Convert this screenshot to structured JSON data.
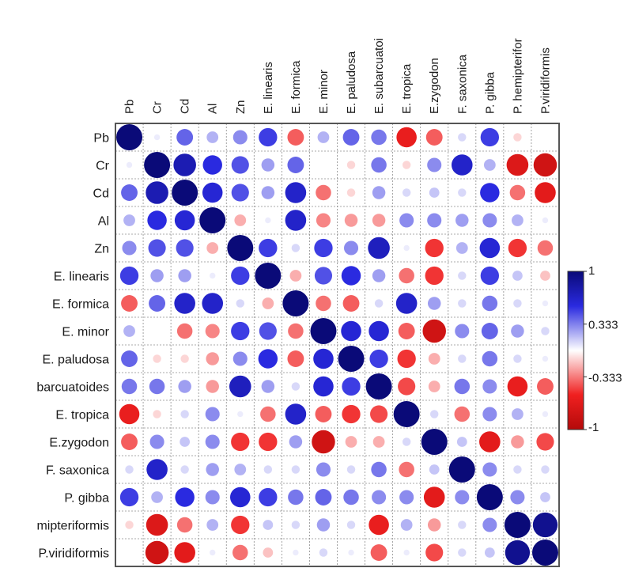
{
  "chart_data": {
    "type": "heatmap",
    "variant": "correlation-circles",
    "title": "",
    "row_labels": [
      "Pb",
      "Cr",
      "Cd",
      "Al",
      "Zn",
      "E. linearis",
      "E. formica",
      "E. minor",
      "E. paludosa",
      "barcuatoides",
      "E. tropica",
      "E.zygodon",
      "F. saxonica",
      "P. gibba",
      "mipteriformis",
      "P.viridiformis"
    ],
    "col_labels": [
      "Pb",
      "Cr",
      "Cd",
      "Al",
      "Zn",
      "E. linearis",
      "E. formica",
      "E. minor",
      "E. paludosa",
      "E. subarcuatoi",
      "E. tropica",
      "E.zygodon",
      "F. saxonica",
      "P. gibba",
      "P. hemipterifor",
      "P.viridiformis"
    ],
    "matrix": [
      [
        1,
        0.05,
        0.4,
        0.2,
        0.3,
        0.5,
        -0.4,
        0.2,
        0.4,
        0.35,
        -0.6,
        -0.4,
        0.1,
        0.5,
        -0.1,
        0
      ],
      [
        0.05,
        1,
        0.75,
        0.55,
        0.45,
        0.25,
        0.4,
        0,
        -0.1,
        0.35,
        -0.1,
        0.3,
        0.65,
        0.2,
        -0.7,
        -0.8
      ],
      [
        0.4,
        0.75,
        1,
        0.6,
        0.45,
        0.25,
        0.65,
        -0.35,
        -0.1,
        0.25,
        0.1,
        0.15,
        0.1,
        0.55,
        -0.35,
        -0.65
      ],
      [
        0.2,
        0.55,
        0.6,
        1,
        -0.2,
        0.05,
        0.65,
        -0.3,
        -0.25,
        -0.25,
        0.3,
        0.3,
        0.25,
        0.3,
        0.2,
        0.05
      ],
      [
        0.3,
        0.45,
        0.45,
        -0.2,
        1,
        0.5,
        0.1,
        0.5,
        0.3,
        0.7,
        0.05,
        -0.5,
        0.2,
        0.6,
        -0.5,
        -0.35
      ],
      [
        0.5,
        0.25,
        0.25,
        0.05,
        0.5,
        1,
        -0.2,
        0.45,
        0.55,
        0.25,
        -0.35,
        -0.5,
        0.1,
        0.5,
        0.15,
        -0.15
      ],
      [
        -0.4,
        0.4,
        0.65,
        0.65,
        0.1,
        -0.2,
        1,
        -0.35,
        -0.4,
        0.1,
        0.65,
        0.25,
        0.1,
        0.35,
        0.1,
        0.05
      ],
      [
        0.2,
        0,
        -0.35,
        -0.3,
        0.5,
        0.45,
        -0.35,
        1,
        0.6,
        0.6,
        -0.4,
        -0.8,
        0.3,
        0.4,
        0.25,
        0.1
      ],
      [
        0.4,
        -0.1,
        -0.1,
        -0.25,
        0.3,
        0.55,
        -0.4,
        0.6,
        1,
        0.5,
        -0.5,
        -0.2,
        0.1,
        0.35,
        0.1,
        0.05
      ],
      [
        0.35,
        0.35,
        0.25,
        -0.25,
        0.7,
        0.25,
        0.1,
        0.6,
        0.5,
        1,
        -0.45,
        -0.2,
        0.35,
        0.3,
        -0.6,
        -0.4
      ],
      [
        -0.6,
        -0.1,
        0.1,
        0.3,
        0.05,
        -0.35,
        0.65,
        -0.4,
        -0.5,
        -0.45,
        1,
        0.1,
        -0.35,
        0.3,
        0.2,
        0.05
      ],
      [
        -0.4,
        0.3,
        0.15,
        0.3,
        -0.5,
        -0.5,
        0.25,
        -0.8,
        -0.2,
        -0.2,
        0.1,
        1,
        0.15,
        -0.65,
        -0.25,
        -0.45
      ],
      [
        0.1,
        0.65,
        0.1,
        0.25,
        0.2,
        0.1,
        0.1,
        0.3,
        0.1,
        0.35,
        -0.35,
        0.15,
        1,
        0.3,
        0.1,
        0.1
      ],
      [
        0.5,
        0.2,
        0.55,
        0.3,
        0.6,
        0.5,
        0.35,
        0.4,
        0.35,
        0.3,
        0.3,
        -0.65,
        0.3,
        1,
        0.3,
        0.15
      ],
      [
        -0.1,
        -0.7,
        -0.35,
        0.2,
        -0.5,
        0.15,
        0.1,
        0.25,
        0.1,
        -0.6,
        0.2,
        -0.25,
        0.1,
        0.3,
        1,
        0.9
      ],
      [
        0,
        -0.8,
        -0.65,
        0.05,
        -0.35,
        -0.15,
        0.05,
        0.1,
        0.05,
        -0.4,
        0.05,
        -0.45,
        0.1,
        0.15,
        0.9,
        1
      ]
    ],
    "range": [
      -1,
      1
    ],
    "colorbar": {
      "ticks": [
        "1",
        "0.333",
        "-0.333",
        "-1"
      ],
      "tick_values": [
        1,
        0.333,
        -0.333,
        -1
      ]
    },
    "grid": true,
    "legend_placement": "right"
  },
  "colors": {
    "strong_positive": "#0a0a78",
    "mid_positive": "#2a2ae0",
    "neutral": "#ffffff",
    "mid_negative": "#f02020",
    "strong_negative": "#b40a0a",
    "grid_line": "#8c8c8c",
    "frame": "#555555"
  }
}
